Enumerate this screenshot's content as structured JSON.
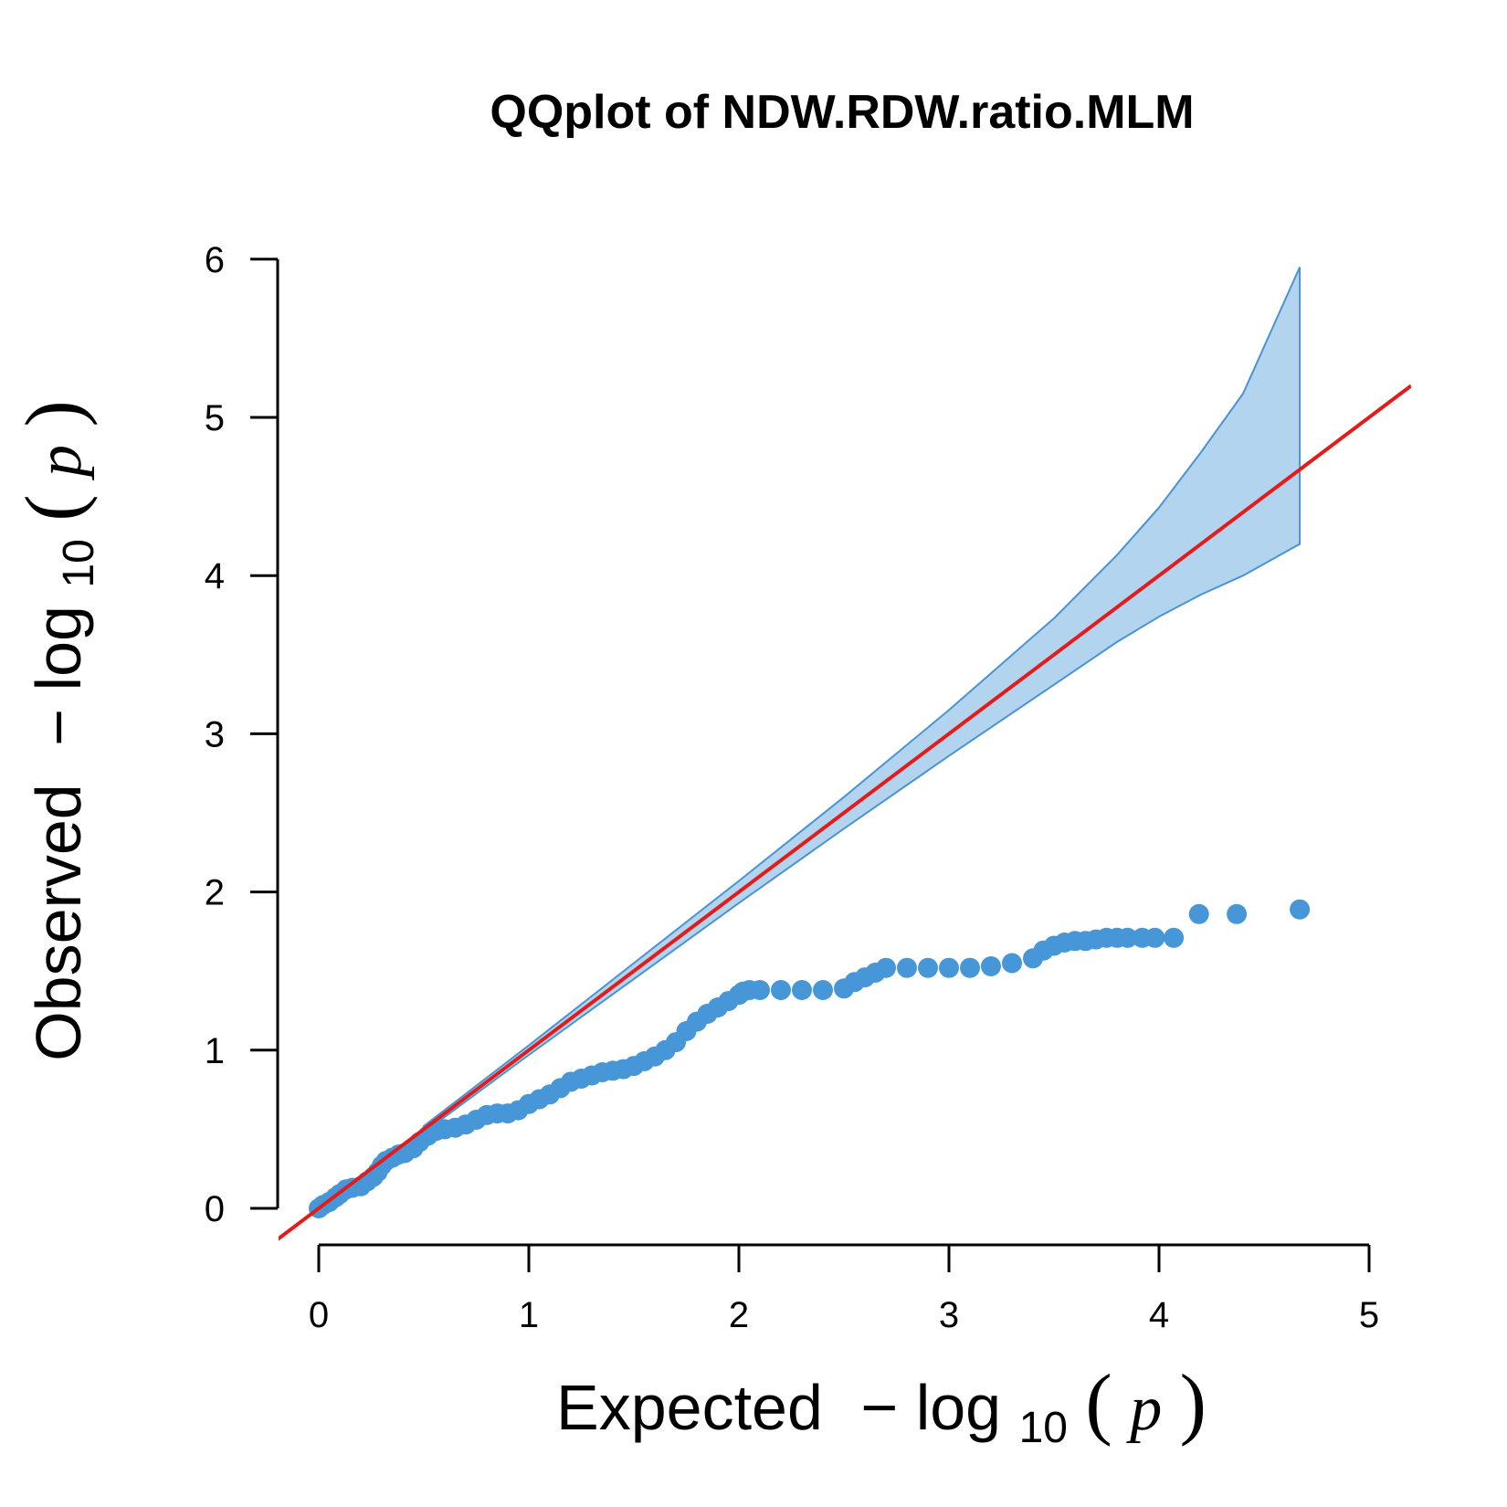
{
  "chart_data": {
    "type": "scatter",
    "title": "QQplot of NDW.RDW.ratio.MLM",
    "xlabel": {
      "prefix": "Expected",
      "minus": "−",
      "log": "log",
      "base": "10",
      "open": "(",
      "var": "p",
      "close": ")"
    },
    "ylabel": {
      "prefix": "Observed",
      "minus": "−",
      "log": "log",
      "base": "10",
      "open": "(",
      "var": "p",
      "close": ")"
    },
    "xlim": [
      0,
      5
    ],
    "ylim": [
      0,
      6
    ],
    "x_ticks": [
      "0",
      "1",
      "2",
      "3",
      "4",
      "5"
    ],
    "y_ticks": [
      "0",
      "1",
      "2",
      "3",
      "4",
      "5",
      "6"
    ],
    "grid": false,
    "legend": "none",
    "colors": {
      "points": "#4797d8",
      "band_fill": "#b3d4ef",
      "band_edge": "#4a93d3",
      "reference_line": "#e31b1b",
      "axis": "#000000"
    },
    "reference_line": {
      "type": "identity",
      "x": [
        -0.2,
        5.2
      ],
      "y": [
        -0.2,
        5.2
      ]
    },
    "confidence_band": {
      "x": [
        0.5,
        1.0,
        1.5,
        2.0,
        2.5,
        3.0,
        3.5,
        3.8,
        4.0,
        4.2,
        4.4,
        4.67
      ],
      "upper": [
        0.52,
        1.03,
        1.55,
        2.07,
        2.6,
        3.15,
        3.73,
        4.13,
        4.43,
        4.78,
        5.15,
        5.95
      ],
      "lower": [
        0.48,
        0.97,
        1.45,
        1.93,
        2.4,
        2.86,
        3.31,
        3.58,
        3.74,
        3.88,
        4.0,
        4.2
      ]
    },
    "points": [
      [
        0.0,
        0.0
      ],
      [
        0.02,
        0.02
      ],
      [
        0.05,
        0.04
      ],
      [
        0.08,
        0.07
      ],
      [
        0.1,
        0.09
      ],
      [
        0.13,
        0.12
      ],
      [
        0.16,
        0.13
      ],
      [
        0.2,
        0.14
      ],
      [
        0.23,
        0.17
      ],
      [
        0.26,
        0.2
      ],
      [
        0.28,
        0.23
      ],
      [
        0.3,
        0.27
      ],
      [
        0.32,
        0.3
      ],
      [
        0.35,
        0.32
      ],
      [
        0.38,
        0.34
      ],
      [
        0.41,
        0.35
      ],
      [
        0.45,
        0.38
      ],
      [
        0.48,
        0.42
      ],
      [
        0.52,
        0.46
      ],
      [
        0.56,
        0.49
      ],
      [
        0.6,
        0.5
      ],
      [
        0.65,
        0.51
      ],
      [
        0.7,
        0.53
      ],
      [
        0.75,
        0.56
      ],
      [
        0.8,
        0.59
      ],
      [
        0.85,
        0.6
      ],
      [
        0.9,
        0.6
      ],
      [
        0.95,
        0.62
      ],
      [
        1.0,
        0.66
      ],
      [
        1.05,
        0.69
      ],
      [
        1.1,
        0.72
      ],
      [
        1.15,
        0.76
      ],
      [
        1.2,
        0.8
      ],
      [
        1.25,
        0.82
      ],
      [
        1.3,
        0.84
      ],
      [
        1.35,
        0.86
      ],
      [
        1.4,
        0.87
      ],
      [
        1.45,
        0.88
      ],
      [
        1.5,
        0.9
      ],
      [
        1.55,
        0.93
      ],
      [
        1.6,
        0.96
      ],
      [
        1.65,
        1.0
      ],
      [
        1.7,
        1.05
      ],
      [
        1.75,
        1.12
      ],
      [
        1.8,
        1.18
      ],
      [
        1.85,
        1.23
      ],
      [
        1.9,
        1.27
      ],
      [
        1.95,
        1.31
      ],
      [
        2.0,
        1.35
      ],
      [
        2.02,
        1.37
      ],
      [
        2.05,
        1.38
      ],
      [
        2.1,
        1.38
      ],
      [
        2.2,
        1.38
      ],
      [
        2.3,
        1.38
      ],
      [
        2.4,
        1.38
      ],
      [
        2.5,
        1.39
      ],
      [
        2.55,
        1.43
      ],
      [
        2.6,
        1.46
      ],
      [
        2.65,
        1.49
      ],
      [
        2.7,
        1.52
      ],
      [
        2.8,
        1.52
      ],
      [
        2.9,
        1.52
      ],
      [
        3.0,
        1.52
      ],
      [
        3.1,
        1.52
      ],
      [
        3.2,
        1.53
      ],
      [
        3.3,
        1.55
      ],
      [
        3.4,
        1.58
      ],
      [
        3.45,
        1.63
      ],
      [
        3.5,
        1.66
      ],
      [
        3.55,
        1.68
      ],
      [
        3.6,
        1.69
      ],
      [
        3.65,
        1.69
      ],
      [
        3.7,
        1.7
      ],
      [
        3.75,
        1.71
      ],
      [
        3.8,
        1.71
      ],
      [
        3.85,
        1.71
      ],
      [
        3.92,
        1.71
      ],
      [
        3.98,
        1.71
      ],
      [
        4.07,
        1.71
      ],
      [
        4.19,
        1.86
      ],
      [
        4.37,
        1.86
      ],
      [
        4.67,
        1.89
      ]
    ]
  }
}
